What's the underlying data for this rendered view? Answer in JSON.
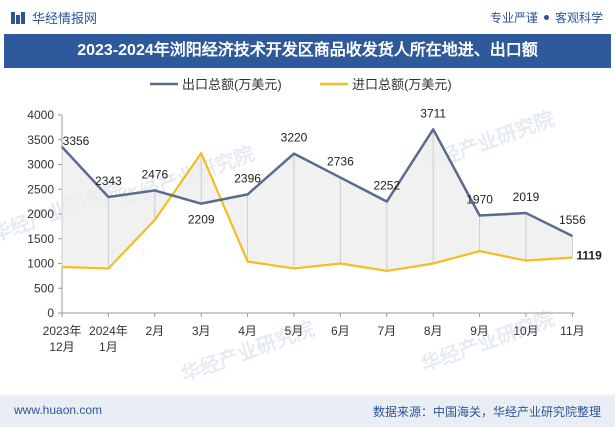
{
  "header": {
    "brand": "华经情报网",
    "tagline_left": "专业严谨",
    "tagline_right": "客观科学"
  },
  "title": "2023-2024年浏阳经济技术开发区商品收发货人所在地进、出口额",
  "footer": {
    "site": "www.huaon.com",
    "source": "数据来源：中国海关，华经产业研究院整理"
  },
  "watermark": "华经产业研究院",
  "colors": {
    "export": "#5b6b8f",
    "import": "#f5bd1f",
    "title_bg": "#2e5a9c",
    "footer_bg": "#e9eef5"
  },
  "chart_data": {
    "type": "line",
    "categories": [
      [
        "2023年",
        "12月"
      ],
      [
        "2024年",
        "1月"
      ],
      [
        "2月"
      ],
      [
        "3月"
      ],
      [
        "4月"
      ],
      [
        "5月"
      ],
      [
        "6月"
      ],
      [
        "7月"
      ],
      [
        "8月"
      ],
      [
        "9月"
      ],
      [
        "10月"
      ],
      [
        "11月"
      ]
    ],
    "series": [
      {
        "name": "出口总额(万美元)",
        "values": [
          3356,
          2343,
          2476,
          2209,
          2396,
          3220,
          2736,
          2252,
          3711,
          1970,
          2019,
          1556
        ],
        "labels": true
      },
      {
        "name": "进口总额(万美元)",
        "values": [
          930,
          900,
          1880,
          3230,
          1040,
          900,
          1000,
          850,
          1000,
          1250,
          1060,
          1119
        ],
        "labels_last_only": true
      }
    ],
    "ylim": [
      0,
      4000
    ],
    "yticks": [
      0,
      500,
      1000,
      1500,
      2000,
      2500,
      3000,
      3500,
      4000
    ],
    "xlabel": "",
    "ylabel": "",
    "legend": "top"
  }
}
